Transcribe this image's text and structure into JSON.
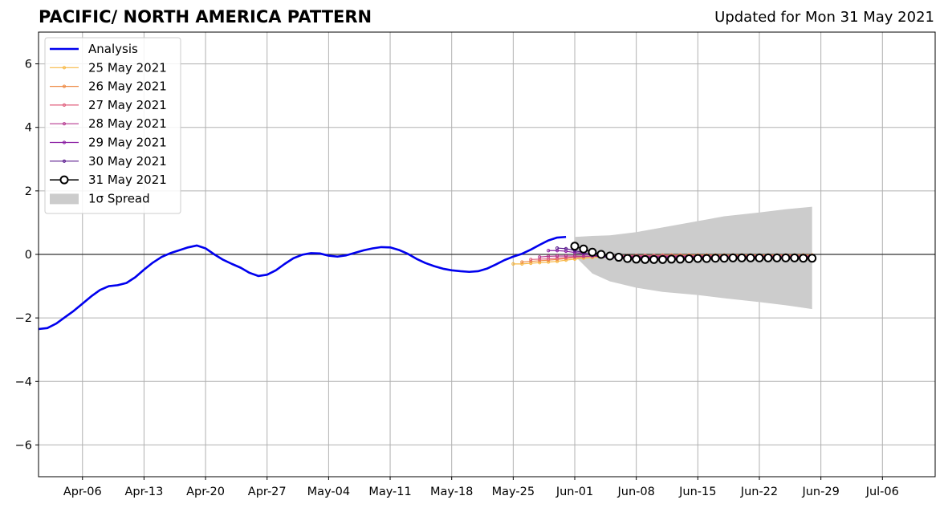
{
  "header": {
    "title": "PACIFIC/ NORTH AMERICA PATTERN",
    "updated": "Updated for Mon 31 May 2021"
  },
  "chart_data": {
    "type": "line",
    "title": "PACIFIC/ NORTH AMERICA PATTERN",
    "subtitle": "Updated for Mon 31 May 2021",
    "xlabel": "",
    "ylabel": "",
    "grid": true,
    "legend_position": "top-left",
    "xlim": [
      "2021-04-01",
      "2021-07-12"
    ],
    "ylim": [
      -7,
      7
    ],
    "x_ticks": [
      "Apr-06",
      "Apr-13",
      "Apr-20",
      "Apr-27",
      "May-04",
      "May-11",
      "May-18",
      "May-25",
      "Jun-01",
      "Jun-08",
      "Jun-15",
      "Jun-22",
      "Jun-29",
      "Jul-06"
    ],
    "x_tick_dates": [
      "2021-04-06",
      "2021-04-13",
      "2021-04-20",
      "2021-04-27",
      "2021-05-04",
      "2021-05-11",
      "2021-05-18",
      "2021-05-25",
      "2021-06-01",
      "2021-06-08",
      "2021-06-15",
      "2021-06-22",
      "2021-06-29",
      "2021-07-06"
    ],
    "y_ticks": [
      6,
      4,
      2,
      0,
      -2,
      -4,
      -6
    ],
    "y_tick_labels": [
      "6",
      "4",
      "2",
      "0",
      "−2",
      "−4",
      "−6"
    ],
    "series": [
      {
        "name": "Analysis",
        "color": "#0000ee",
        "x": [
          "2021-04-01",
          "2021-04-02",
          "2021-04-03",
          "2021-04-04",
          "2021-04-05",
          "2021-04-06",
          "2021-04-07",
          "2021-04-08",
          "2021-04-09",
          "2021-04-10",
          "2021-04-11",
          "2021-04-12",
          "2021-04-13",
          "2021-04-14",
          "2021-04-15",
          "2021-04-16",
          "2021-04-17",
          "2021-04-18",
          "2021-04-19",
          "2021-04-20",
          "2021-04-21",
          "2021-04-22",
          "2021-04-23",
          "2021-04-24",
          "2021-04-25",
          "2021-04-26",
          "2021-04-27",
          "2021-04-28",
          "2021-04-29",
          "2021-04-30",
          "2021-05-01",
          "2021-05-02",
          "2021-05-03",
          "2021-05-04",
          "2021-05-05",
          "2021-05-06",
          "2021-05-07",
          "2021-05-08",
          "2021-05-09",
          "2021-05-10",
          "2021-05-11",
          "2021-05-12",
          "2021-05-13",
          "2021-05-14",
          "2021-05-15",
          "2021-05-16",
          "2021-05-17",
          "2021-05-18",
          "2021-05-19",
          "2021-05-20",
          "2021-05-21",
          "2021-05-22",
          "2021-05-23",
          "2021-05-24",
          "2021-05-25",
          "2021-05-26",
          "2021-05-27",
          "2021-05-28",
          "2021-05-29",
          "2021-05-30",
          "2021-05-31"
        ],
        "y": [
          -2.35,
          -2.32,
          -2.18,
          -1.98,
          -1.78,
          -1.55,
          -1.32,
          -1.12,
          -1.0,
          -0.97,
          -0.9,
          -0.72,
          -0.48,
          -0.26,
          -0.08,
          0.04,
          0.13,
          0.22,
          0.28,
          0.19,
          0.0,
          -0.17,
          -0.3,
          -0.42,
          -0.58,
          -0.68,
          -0.64,
          -0.5,
          -0.3,
          -0.12,
          -0.01,
          0.04,
          0.03,
          -0.04,
          -0.07,
          -0.03,
          0.05,
          0.13,
          0.19,
          0.23,
          0.22,
          0.14,
          0.02,
          -0.14,
          -0.27,
          -0.37,
          -0.45,
          -0.5,
          -0.53,
          -0.55,
          -0.53,
          -0.45,
          -0.32,
          -0.18,
          -0.07,
          0.02,
          0.15,
          0.3,
          0.44,
          0.53,
          0.55
        ]
      },
      {
        "name": "25 May 2021",
        "color": "#f7b742",
        "x": [
          "2021-05-25",
          "2021-05-26",
          "2021-05-27",
          "2021-05-28",
          "2021-05-29",
          "2021-05-30",
          "2021-05-31",
          "2021-06-01",
          "2021-06-02",
          "2021-06-03",
          "2021-06-04",
          "2021-06-05",
          "2021-06-06",
          "2021-06-07",
          "2021-06-08",
          "2021-06-09",
          "2021-06-10",
          "2021-06-11",
          "2021-06-12",
          "2021-06-13",
          "2021-06-14",
          "2021-06-15",
          "2021-06-16",
          "2021-06-17",
          "2021-06-18",
          "2021-06-19",
          "2021-06-20",
          "2021-06-21",
          "2021-06-22",
          "2021-06-23",
          "2021-06-24",
          "2021-06-25",
          "2021-06-26",
          "2021-06-27",
          "2021-06-28"
        ],
        "y": [
          -0.3,
          -0.3,
          -0.28,
          -0.26,
          -0.24,
          -0.22,
          -0.18,
          -0.15,
          -0.12,
          -0.1,
          -0.08,
          -0.06,
          -0.05,
          -0.04,
          -0.04,
          -0.03,
          -0.03,
          -0.03,
          -0.02,
          -0.02,
          -0.02,
          -0.02,
          -0.02,
          -0.02,
          -0.02,
          -0.02,
          -0.02,
          -0.02,
          -0.02,
          -0.02,
          -0.02,
          -0.02,
          -0.02,
          -0.02,
          -0.02
        ]
      },
      {
        "name": "26 May 2021",
        "color": "#ee8a45",
        "x": [
          "2021-05-26",
          "2021-05-27",
          "2021-05-28",
          "2021-05-29",
          "2021-05-30",
          "2021-05-31",
          "2021-06-01",
          "2021-06-02",
          "2021-06-03",
          "2021-06-04",
          "2021-06-05",
          "2021-06-06",
          "2021-06-07",
          "2021-06-08",
          "2021-06-09",
          "2021-06-10",
          "2021-06-11",
          "2021-06-12",
          "2021-06-13",
          "2021-06-14",
          "2021-06-15",
          "2021-06-16",
          "2021-06-17",
          "2021-06-18",
          "2021-06-19",
          "2021-06-20",
          "2021-06-21",
          "2021-06-22",
          "2021-06-23",
          "2021-06-24",
          "2021-06-25",
          "2021-06-26",
          "2021-06-27",
          "2021-06-28"
        ],
        "y": [
          -0.24,
          -0.22,
          -0.2,
          -0.18,
          -0.16,
          -0.13,
          -0.1,
          -0.08,
          -0.06,
          -0.05,
          -0.04,
          -0.04,
          -0.03,
          -0.03,
          -0.03,
          -0.03,
          -0.02,
          -0.02,
          -0.02,
          -0.02,
          -0.02,
          -0.02,
          -0.02,
          -0.02,
          -0.02,
          -0.02,
          -0.02,
          -0.02,
          -0.02,
          -0.02,
          -0.02,
          -0.02,
          -0.02,
          -0.02
        ]
      },
      {
        "name": "27 May 2021",
        "color": "#e0607e",
        "x": [
          "2021-05-27",
          "2021-05-28",
          "2021-05-29",
          "2021-05-30",
          "2021-05-31",
          "2021-06-01",
          "2021-06-02",
          "2021-06-03",
          "2021-06-04",
          "2021-06-05",
          "2021-06-06",
          "2021-06-07",
          "2021-06-08",
          "2021-06-09",
          "2021-06-10",
          "2021-06-11",
          "2021-06-12",
          "2021-06-13",
          "2021-06-14",
          "2021-06-15",
          "2021-06-16",
          "2021-06-17",
          "2021-06-18",
          "2021-06-19",
          "2021-06-20",
          "2021-06-21",
          "2021-06-22",
          "2021-06-23",
          "2021-06-24",
          "2021-06-25",
          "2021-06-26",
          "2021-06-27",
          "2021-06-28"
        ],
        "y": [
          -0.16,
          -0.15,
          -0.14,
          -0.12,
          -0.1,
          -0.08,
          -0.06,
          -0.05,
          -0.04,
          -0.04,
          -0.04,
          -0.04,
          -0.04,
          -0.04,
          -0.04,
          -0.04,
          -0.04,
          -0.04,
          -0.04,
          -0.04,
          -0.04,
          -0.04,
          -0.04,
          -0.04,
          -0.04,
          -0.04,
          -0.04,
          -0.04,
          -0.04,
          -0.04,
          -0.04,
          -0.04,
          -0.04
        ]
      },
      {
        "name": "28 May 2021",
        "color": "#b5388f",
        "x": [
          "2021-05-28",
          "2021-05-29",
          "2021-05-30",
          "2021-05-31",
          "2021-06-01",
          "2021-06-02",
          "2021-06-03",
          "2021-06-04",
          "2021-06-05",
          "2021-06-06",
          "2021-06-07",
          "2021-06-08",
          "2021-06-09",
          "2021-06-10",
          "2021-06-11",
          "2021-06-12",
          "2021-06-13",
          "2021-06-14",
          "2021-06-15",
          "2021-06-16",
          "2021-06-17",
          "2021-06-18",
          "2021-06-19",
          "2021-06-20",
          "2021-06-21",
          "2021-06-22",
          "2021-06-23",
          "2021-06-24",
          "2021-06-25",
          "2021-06-26",
          "2021-06-27",
          "2021-06-28"
        ],
        "y": [
          -0.08,
          -0.06,
          -0.05,
          -0.05,
          -0.05,
          -0.06,
          -0.06,
          -0.06,
          -0.06,
          -0.06,
          -0.06,
          -0.06,
          -0.06,
          -0.06,
          -0.06,
          -0.06,
          -0.06,
          -0.06,
          -0.06,
          -0.06,
          -0.06,
          -0.06,
          -0.06,
          -0.06,
          -0.06,
          -0.06,
          -0.06,
          -0.06,
          -0.06,
          -0.06,
          -0.06,
          -0.06
        ]
      },
      {
        "name": "29 May 2021",
        "color": "#8a1fa3",
        "x": [
          "2021-05-29",
          "2021-05-30",
          "2021-05-31",
          "2021-06-01",
          "2021-06-02",
          "2021-06-03",
          "2021-06-04",
          "2021-06-05",
          "2021-06-06",
          "2021-06-07",
          "2021-06-08",
          "2021-06-09",
          "2021-06-10",
          "2021-06-11",
          "2021-06-12",
          "2021-06-13",
          "2021-06-14",
          "2021-06-15",
          "2021-06-16",
          "2021-06-17",
          "2021-06-18",
          "2021-06-19",
          "2021-06-20",
          "2021-06-21",
          "2021-06-22",
          "2021-06-23",
          "2021-06-24",
          "2021-06-25",
          "2021-06-26",
          "2021-06-27",
          "2021-06-28"
        ],
        "y": [
          0.12,
          0.12,
          0.1,
          0.06,
          0.02,
          -0.02,
          -0.05,
          -0.07,
          -0.08,
          -0.09,
          -0.09,
          -0.09,
          -0.09,
          -0.09,
          -0.09,
          -0.09,
          -0.09,
          -0.09,
          -0.09,
          -0.09,
          -0.09,
          -0.09,
          -0.09,
          -0.09,
          -0.09,
          -0.09,
          -0.09,
          -0.09,
          -0.09,
          -0.09,
          -0.09
        ]
      },
      {
        "name": "30 May 2021",
        "color": "#5a1a8e",
        "x": [
          "2021-05-30",
          "2021-05-31",
          "2021-06-01",
          "2021-06-02",
          "2021-06-03",
          "2021-06-04",
          "2021-06-05",
          "2021-06-06",
          "2021-06-07",
          "2021-06-08",
          "2021-06-09",
          "2021-06-10",
          "2021-06-11",
          "2021-06-12",
          "2021-06-13",
          "2021-06-14",
          "2021-06-15",
          "2021-06-16",
          "2021-06-17",
          "2021-06-18",
          "2021-06-19",
          "2021-06-20",
          "2021-06-21",
          "2021-06-22",
          "2021-06-23",
          "2021-06-24",
          "2021-06-25",
          "2021-06-26",
          "2021-06-27",
          "2021-06-28"
        ],
        "y": [
          0.2,
          0.18,
          0.12,
          0.05,
          -0.02,
          -0.07,
          -0.1,
          -0.12,
          -0.13,
          -0.13,
          -0.13,
          -0.13,
          -0.13,
          -0.13,
          -0.13,
          -0.13,
          -0.13,
          -0.13,
          -0.13,
          -0.13,
          -0.13,
          -0.13,
          -0.13,
          -0.13,
          -0.13,
          -0.13,
          -0.13,
          -0.13,
          -0.13,
          -0.13
        ]
      },
      {
        "name": "31 May 2021",
        "color": "#000000",
        "x": [
          "2021-06-01",
          "2021-06-02",
          "2021-06-03",
          "2021-06-04",
          "2021-06-05",
          "2021-06-06",
          "2021-06-07",
          "2021-06-08",
          "2021-06-09",
          "2021-06-10",
          "2021-06-11",
          "2021-06-12",
          "2021-06-13",
          "2021-06-14",
          "2021-06-15",
          "2021-06-16",
          "2021-06-17",
          "2021-06-18",
          "2021-06-19",
          "2021-06-20",
          "2021-06-21",
          "2021-06-22",
          "2021-06-23",
          "2021-06-24",
          "2021-06-25",
          "2021-06-26",
          "2021-06-27",
          "2021-06-28"
        ],
        "y": [
          0.26,
          0.17,
          0.07,
          0.0,
          -0.05,
          -0.09,
          -0.13,
          -0.15,
          -0.16,
          -0.16,
          -0.16,
          -0.15,
          -0.15,
          -0.14,
          -0.13,
          -0.13,
          -0.12,
          -0.12,
          -0.11,
          -0.11,
          -0.11,
          -0.11,
          -0.11,
          -0.11,
          -0.11,
          -0.11,
          -0.12,
          -0.12
        ]
      }
    ],
    "spread": {
      "name": "1σ Spread",
      "color": "#cccccc",
      "x": [
        "2021-06-01",
        "2021-06-03",
        "2021-06-05",
        "2021-06-08",
        "2021-06-11",
        "2021-06-15",
        "2021-06-18",
        "2021-06-22",
        "2021-06-25",
        "2021-06-28"
      ],
      "upper": [
        0.55,
        0.58,
        0.6,
        0.7,
        0.85,
        1.05,
        1.2,
        1.32,
        1.42,
        1.5
      ],
      "lower": [
        -0.05,
        -0.6,
        -0.85,
        -1.05,
        -1.18,
        -1.28,
        -1.38,
        -1.5,
        -1.6,
        -1.72
      ]
    }
  }
}
